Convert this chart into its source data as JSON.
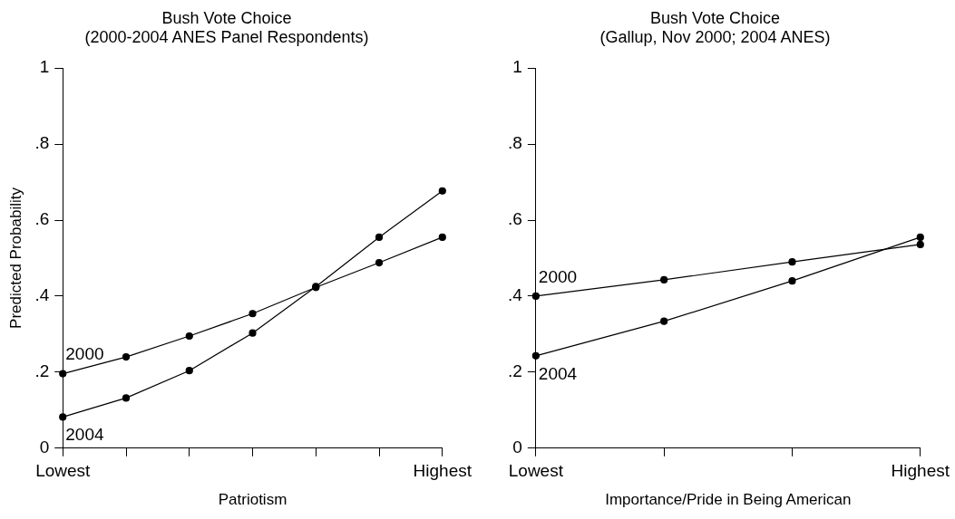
{
  "chart_data": [
    {
      "type": "line",
      "title": "Bush Vote Choice",
      "subtitle": "(2000-2004 ANES Panel Respondents)",
      "xlabel": "Patriotism",
      "ylabel": "Predicted Probability",
      "categories": [
        "Lowest",
        null,
        null,
        null,
        null,
        null,
        "Highest"
      ],
      "series": [
        {
          "name": "2000",
          "color": "#000000",
          "values": [
            0.196,
            0.24,
            0.295,
            0.354,
            0.423,
            0.488,
            0.555
          ]
        },
        {
          "name": "2004",
          "color": "#000000",
          "values": [
            0.082,
            0.132,
            0.204,
            0.303,
            0.425,
            0.555,
            0.677
          ]
        }
      ],
      "ylim": [
        0,
        1
      ],
      "yticks": [
        {
          "value": 0,
          "label": "0"
        },
        {
          "value": 0.2,
          "label": ".2"
        },
        {
          "value": 0.4,
          "label": ".4"
        },
        {
          "value": 0.6,
          "label": ".6"
        },
        {
          "value": 0.8,
          "label": ".8"
        },
        {
          "value": 1,
          "label": "1"
        }
      ],
      "grid": false,
      "legend": false,
      "marker": "circle"
    },
    {
      "type": "line",
      "title": "Bush Vote Choice",
      "subtitle": "(Gallup, Nov 2000; 2004 ANES)",
      "xlabel": "Importance/Pride in Being American",
      "categories": [
        "Lowest",
        null,
        null,
        "Highest"
      ],
      "series": [
        {
          "name": "2000",
          "color": "#000000",
          "values": [
            0.4,
            0.443,
            0.49,
            0.536
          ]
        },
        {
          "name": "2004",
          "color": "#000000",
          "values": [
            0.243,
            0.334,
            0.44,
            0.555
          ]
        }
      ],
      "ylim": [
        0,
        1
      ],
      "yticks": [
        {
          "value": 0,
          "label": "0"
        },
        {
          "value": 0.2,
          "label": ".2"
        },
        {
          "value": 0.4,
          "label": ".4"
        },
        {
          "value": 0.6,
          "label": ".6"
        },
        {
          "value": 0.8,
          "label": ".8"
        },
        {
          "value": 1,
          "label": "1"
        }
      ],
      "grid": false,
      "legend": false,
      "marker": "circle"
    }
  ]
}
